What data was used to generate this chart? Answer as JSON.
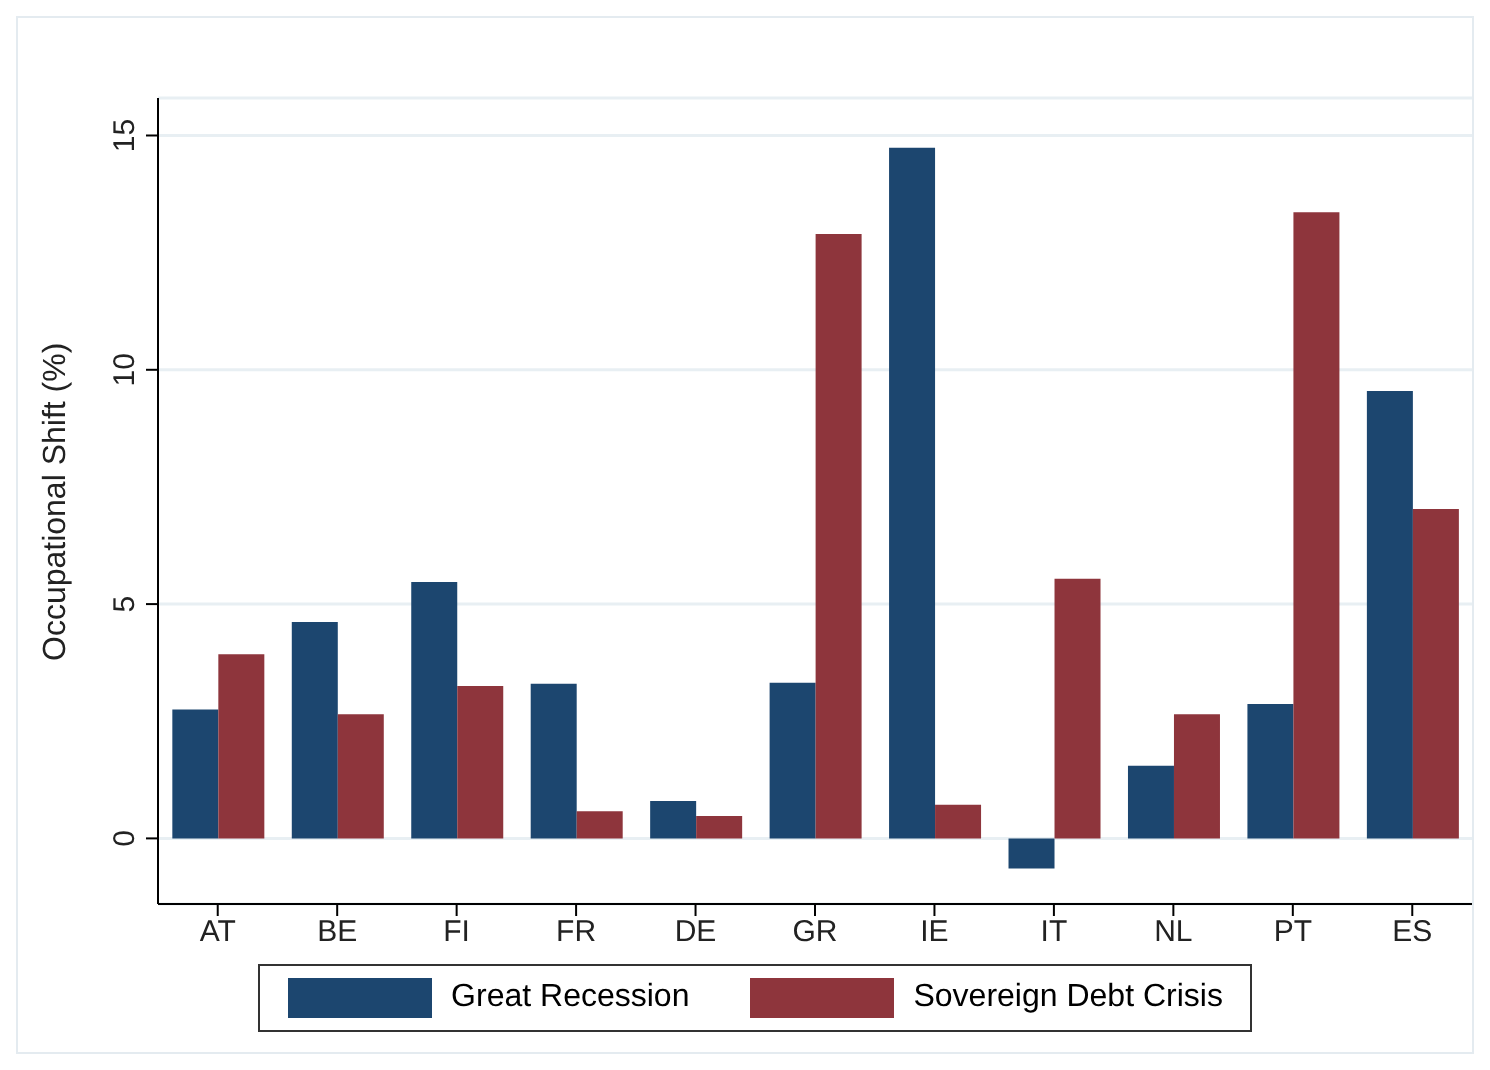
{
  "chart_data": {
    "type": "bar",
    "ylabel": "Occupational Shift (%)",
    "categories": [
      "AT",
      "BE",
      "FI",
      "FR",
      "DE",
      "GR",
      "IE",
      "IT",
      "NL",
      "PT",
      "ES"
    ],
    "series": [
      {
        "name": "Great Recession",
        "color": "#1c466f",
        "values": [
          2.75,
          4.62,
          5.47,
          3.3,
          0.8,
          3.32,
          14.74,
          -0.64,
          1.55,
          2.87,
          9.55
        ]
      },
      {
        "name": "Sovereign Debt Crisis",
        "color": "#8e353c",
        "values": [
          3.93,
          2.65,
          3.25,
          0.58,
          0.48,
          12.9,
          0.72,
          5.54,
          2.65,
          13.36,
          7.03
        ]
      }
    ],
    "ylim": [
      -1.4,
      15.8
    ],
    "yticks": [
      0,
      5,
      10,
      15
    ],
    "grid": "y",
    "legend": "bottom"
  }
}
